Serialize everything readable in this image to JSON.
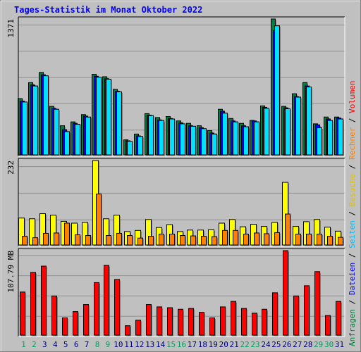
{
  "title": "Tages-Statistik im Monat Oktober 2022",
  "colors": {
    "background": "#c0c0c0",
    "hits": "#008040",
    "files": "#0000ff",
    "pages": "#00e0ff",
    "visits": "#ffff00",
    "sites": "#ff8000",
    "kbytes": "#ff0000",
    "weekend_day": "#00a060",
    "weekday": "#000080"
  },
  "chart_data": [
    {
      "type": "bar",
      "id": "requests",
      "max_label": "1371",
      "ylim": [
        0,
        1400
      ],
      "categories": [
        "1",
        "2",
        "3",
        "4",
        "5",
        "6",
        "7",
        "8",
        "9",
        "10",
        "11",
        "12",
        "13",
        "14",
        "15",
        "16",
        "17",
        "18",
        "19",
        "20",
        "21",
        "22",
        "23",
        "24",
        "25",
        "26",
        "27",
        "28",
        "29",
        "30",
        "31"
      ],
      "weekend_days": [
        "1",
        "2",
        "8",
        "9",
        "15",
        "16",
        "22",
        "23",
        "29",
        "30"
      ],
      "series": [
        {
          "name": "Anfragen",
          "color": "#008040",
          "values": [
            580,
            745,
            850,
            500,
            300,
            340,
            415,
            830,
            805,
            675,
            155,
            215,
            425,
            385,
            395,
            350,
            325,
            300,
            250,
            470,
            375,
            325,
            355,
            505,
            1400,
            500,
            630,
            745,
            320,
            390,
            390
          ]
        },
        {
          "name": "Dateien",
          "color": "#0000ff",
          "values": [
            555,
            720,
            825,
            480,
            260,
            325,
            400,
            810,
            785,
            655,
            145,
            195,
            410,
            360,
            375,
            330,
            300,
            280,
            225,
            450,
            350,
            300,
            350,
            490,
            1280,
            485,
            600,
            710,
            310,
            370,
            380
          ]
        },
        {
          "name": "Seiten",
          "color": "#00e0ff",
          "values": [
            545,
            710,
            815,
            470,
            240,
            315,
            390,
            800,
            780,
            650,
            140,
            190,
            405,
            355,
            370,
            320,
            295,
            270,
            215,
            430,
            340,
            290,
            340,
            480,
            1330,
            475,
            595,
            700,
            280,
            355,
            370
          ]
        }
      ]
    },
    {
      "type": "bar",
      "id": "visits",
      "max_label": "232",
      "ylim": [
        0,
        232
      ],
      "categories": [
        "1",
        "2",
        "3",
        "4",
        "5",
        "6",
        "7",
        "8",
        "9",
        "10",
        "11",
        "12",
        "13",
        "14",
        "15",
        "16",
        "17",
        "18",
        "19",
        "20",
        "21",
        "22",
        "23",
        "24",
        "25",
        "26",
        "27",
        "28",
        "29",
        "30",
        "31"
      ],
      "series": [
        {
          "name": "Besuche",
          "color": "#ffff00",
          "values": [
            74,
            72,
            86,
            82,
            65,
            60,
            62,
            232,
            72,
            82,
            37,
            40,
            70,
            48,
            56,
            37,
            41,
            41,
            42,
            60,
            70,
            50,
            57,
            51,
            62,
            172,
            51,
            64,
            70,
            49,
            38
          ]
        },
        {
          "name": "Rechner",
          "color": "#ff8000",
          "values": [
            24,
            20,
            32,
            33,
            60,
            28,
            26,
            140,
            26,
            32,
            26,
            19,
            24,
            30,
            30,
            26,
            25,
            24,
            23,
            40,
            40,
            30,
            33,
            31,
            34,
            85,
            30,
            30,
            30,
            24,
            21
          ]
        }
      ]
    },
    {
      "type": "bar",
      "id": "volume",
      "max_label": "107.79 MB",
      "ylim": [
        0,
        107.79
      ],
      "categories": [
        "1",
        "2",
        "3",
        "4",
        "5",
        "6",
        "7",
        "8",
        "9",
        "10",
        "11",
        "12",
        "13",
        "14",
        "15",
        "16",
        "17",
        "18",
        "19",
        "20",
        "21",
        "22",
        "23",
        "24",
        "25",
        "26",
        "27",
        "28",
        "29",
        "30",
        "31"
      ],
      "series": [
        {
          "name": "Volumen",
          "color": "#ff0000",
          "values": [
            55,
            80,
            88,
            50,
            22,
            30,
            39,
            67,
            89,
            71,
            12,
            19,
            39,
            36,
            35,
            33,
            34,
            29,
            22,
            36,
            43,
            34,
            28,
            33,
            54,
            107.79,
            50,
            63,
            81,
            25,
            43
          ]
        }
      ]
    }
  ],
  "right_legend": [
    {
      "text": "Anfragen",
      "color": "#008040"
    },
    {
      "text": " / ",
      "color": "#000000"
    },
    {
      "text": "Dateien",
      "color": "#0000ff"
    },
    {
      "text": " / ",
      "color": "#000000"
    },
    {
      "text": "Seiten",
      "color": "#00c0ff"
    },
    {
      "text": " / ",
      "color": "#000000"
    },
    {
      "text": "Besuche",
      "color": "#e0c000"
    },
    {
      "text": " / ",
      "color": "#000000"
    },
    {
      "text": "Rechner",
      "color": "#ff8000"
    },
    {
      "text": " / ",
      "color": "#000000"
    },
    {
      "text": "Volumen",
      "color": "#ff0000"
    }
  ]
}
